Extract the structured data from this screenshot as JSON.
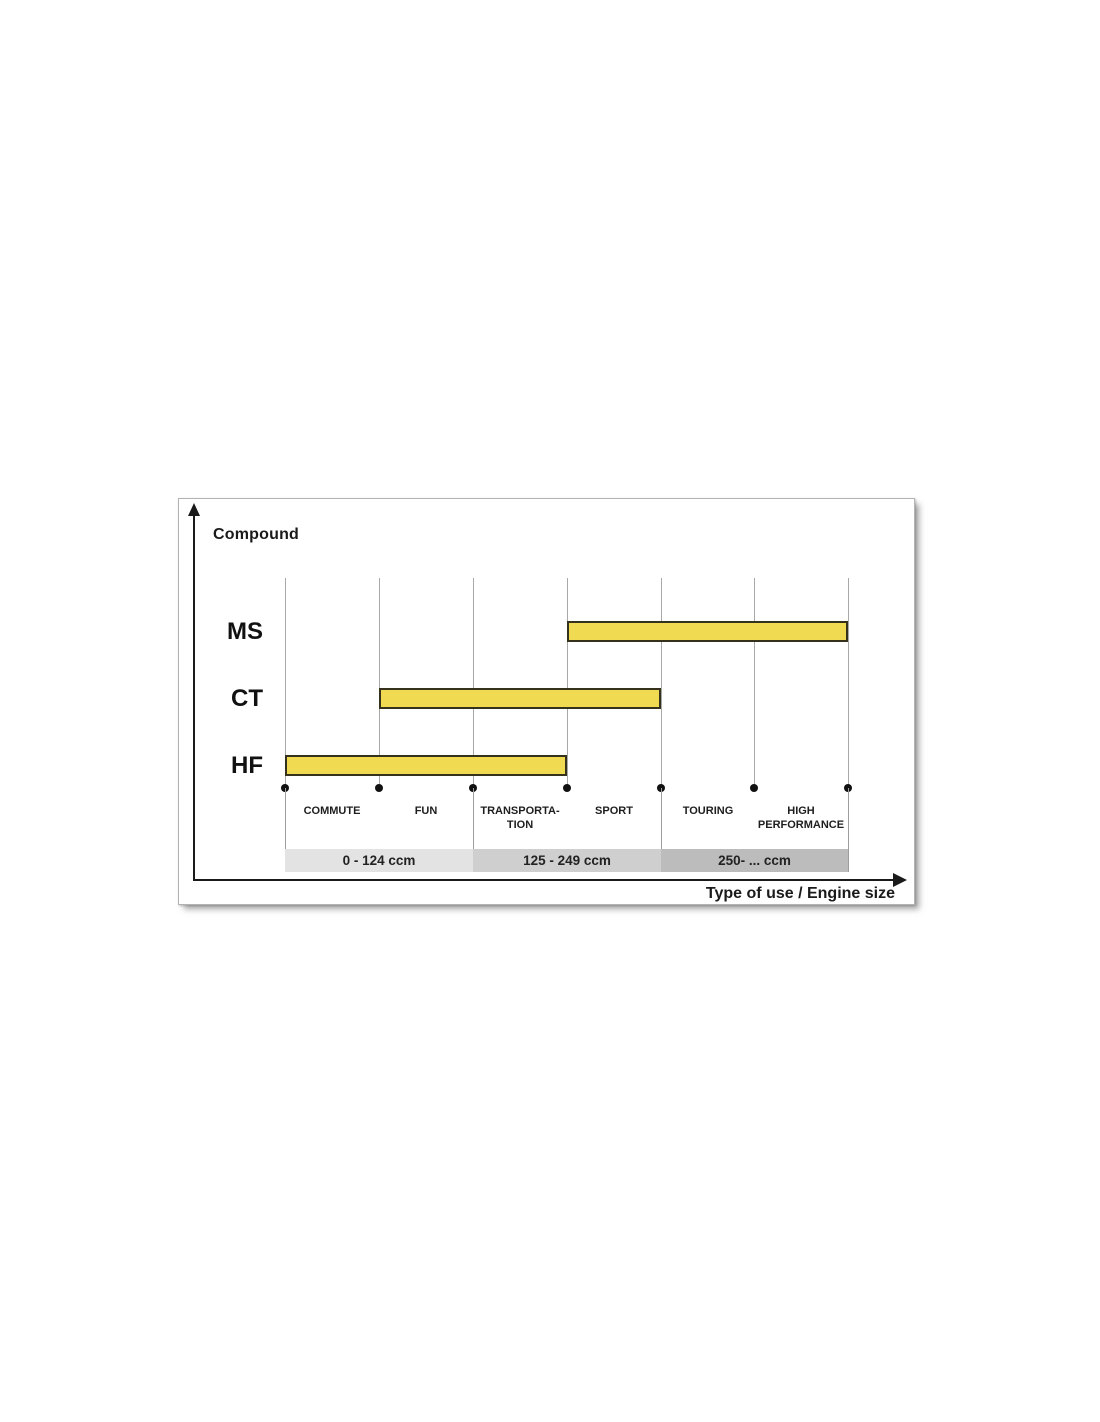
{
  "chart_data": {
    "type": "range-bar",
    "y_axis_title": "Compound",
    "x_axis_title": "Type of use / Engine size",
    "categories": [
      "COMMUTE",
      "FUN",
      "TRANSPORTATION",
      "SPORT",
      "TOURING",
      "HIGH PERFORMANCE"
    ],
    "category_display": [
      {
        "line1": "COMMUTE",
        "line2": ""
      },
      {
        "line1": "FUN",
        "line2": ""
      },
      {
        "line1": "TRANSPORTA-",
        "line2": "TION"
      },
      {
        "line1": "SPORT",
        "line2": ""
      },
      {
        "line1": "TOURING",
        "line2": ""
      },
      {
        "line1": "HIGH",
        "line2": "PERFORMANCE"
      }
    ],
    "series": [
      {
        "name": "MS",
        "start_category": "SPORT",
        "end_category": "HIGH PERFORMANCE",
        "start_boundary_index": 3,
        "end_boundary_index": 6
      },
      {
        "name": "CT",
        "start_category": "FUN",
        "end_category": "SPORT",
        "start_boundary_index": 1,
        "end_boundary_index": 4
      },
      {
        "name": "HF",
        "start_category": "COMMUTE",
        "end_category": "TRANSPORTATION",
        "start_boundary_index": 0,
        "end_boundary_index": 3
      }
    ],
    "engine_size_bands": [
      {
        "label": "0 - 124 ccm",
        "covers": [
          "COMMUTE",
          "FUN"
        ],
        "color": "#e3e3e3"
      },
      {
        "label": "125 - 249 ccm",
        "covers": [
          "TRANSPORTATION",
          "SPORT"
        ],
        "color": "#cfcfcf"
      },
      {
        "label": "250- ... ccm",
        "covers": [
          "TOURING",
          "HIGH PERFORMANCE"
        ],
        "color": "#bcbcbc"
      }
    ],
    "bar_color": "#f0da52",
    "bar_border_color": "#34321c",
    "legend_position": "none",
    "grid": "vertical-only"
  }
}
